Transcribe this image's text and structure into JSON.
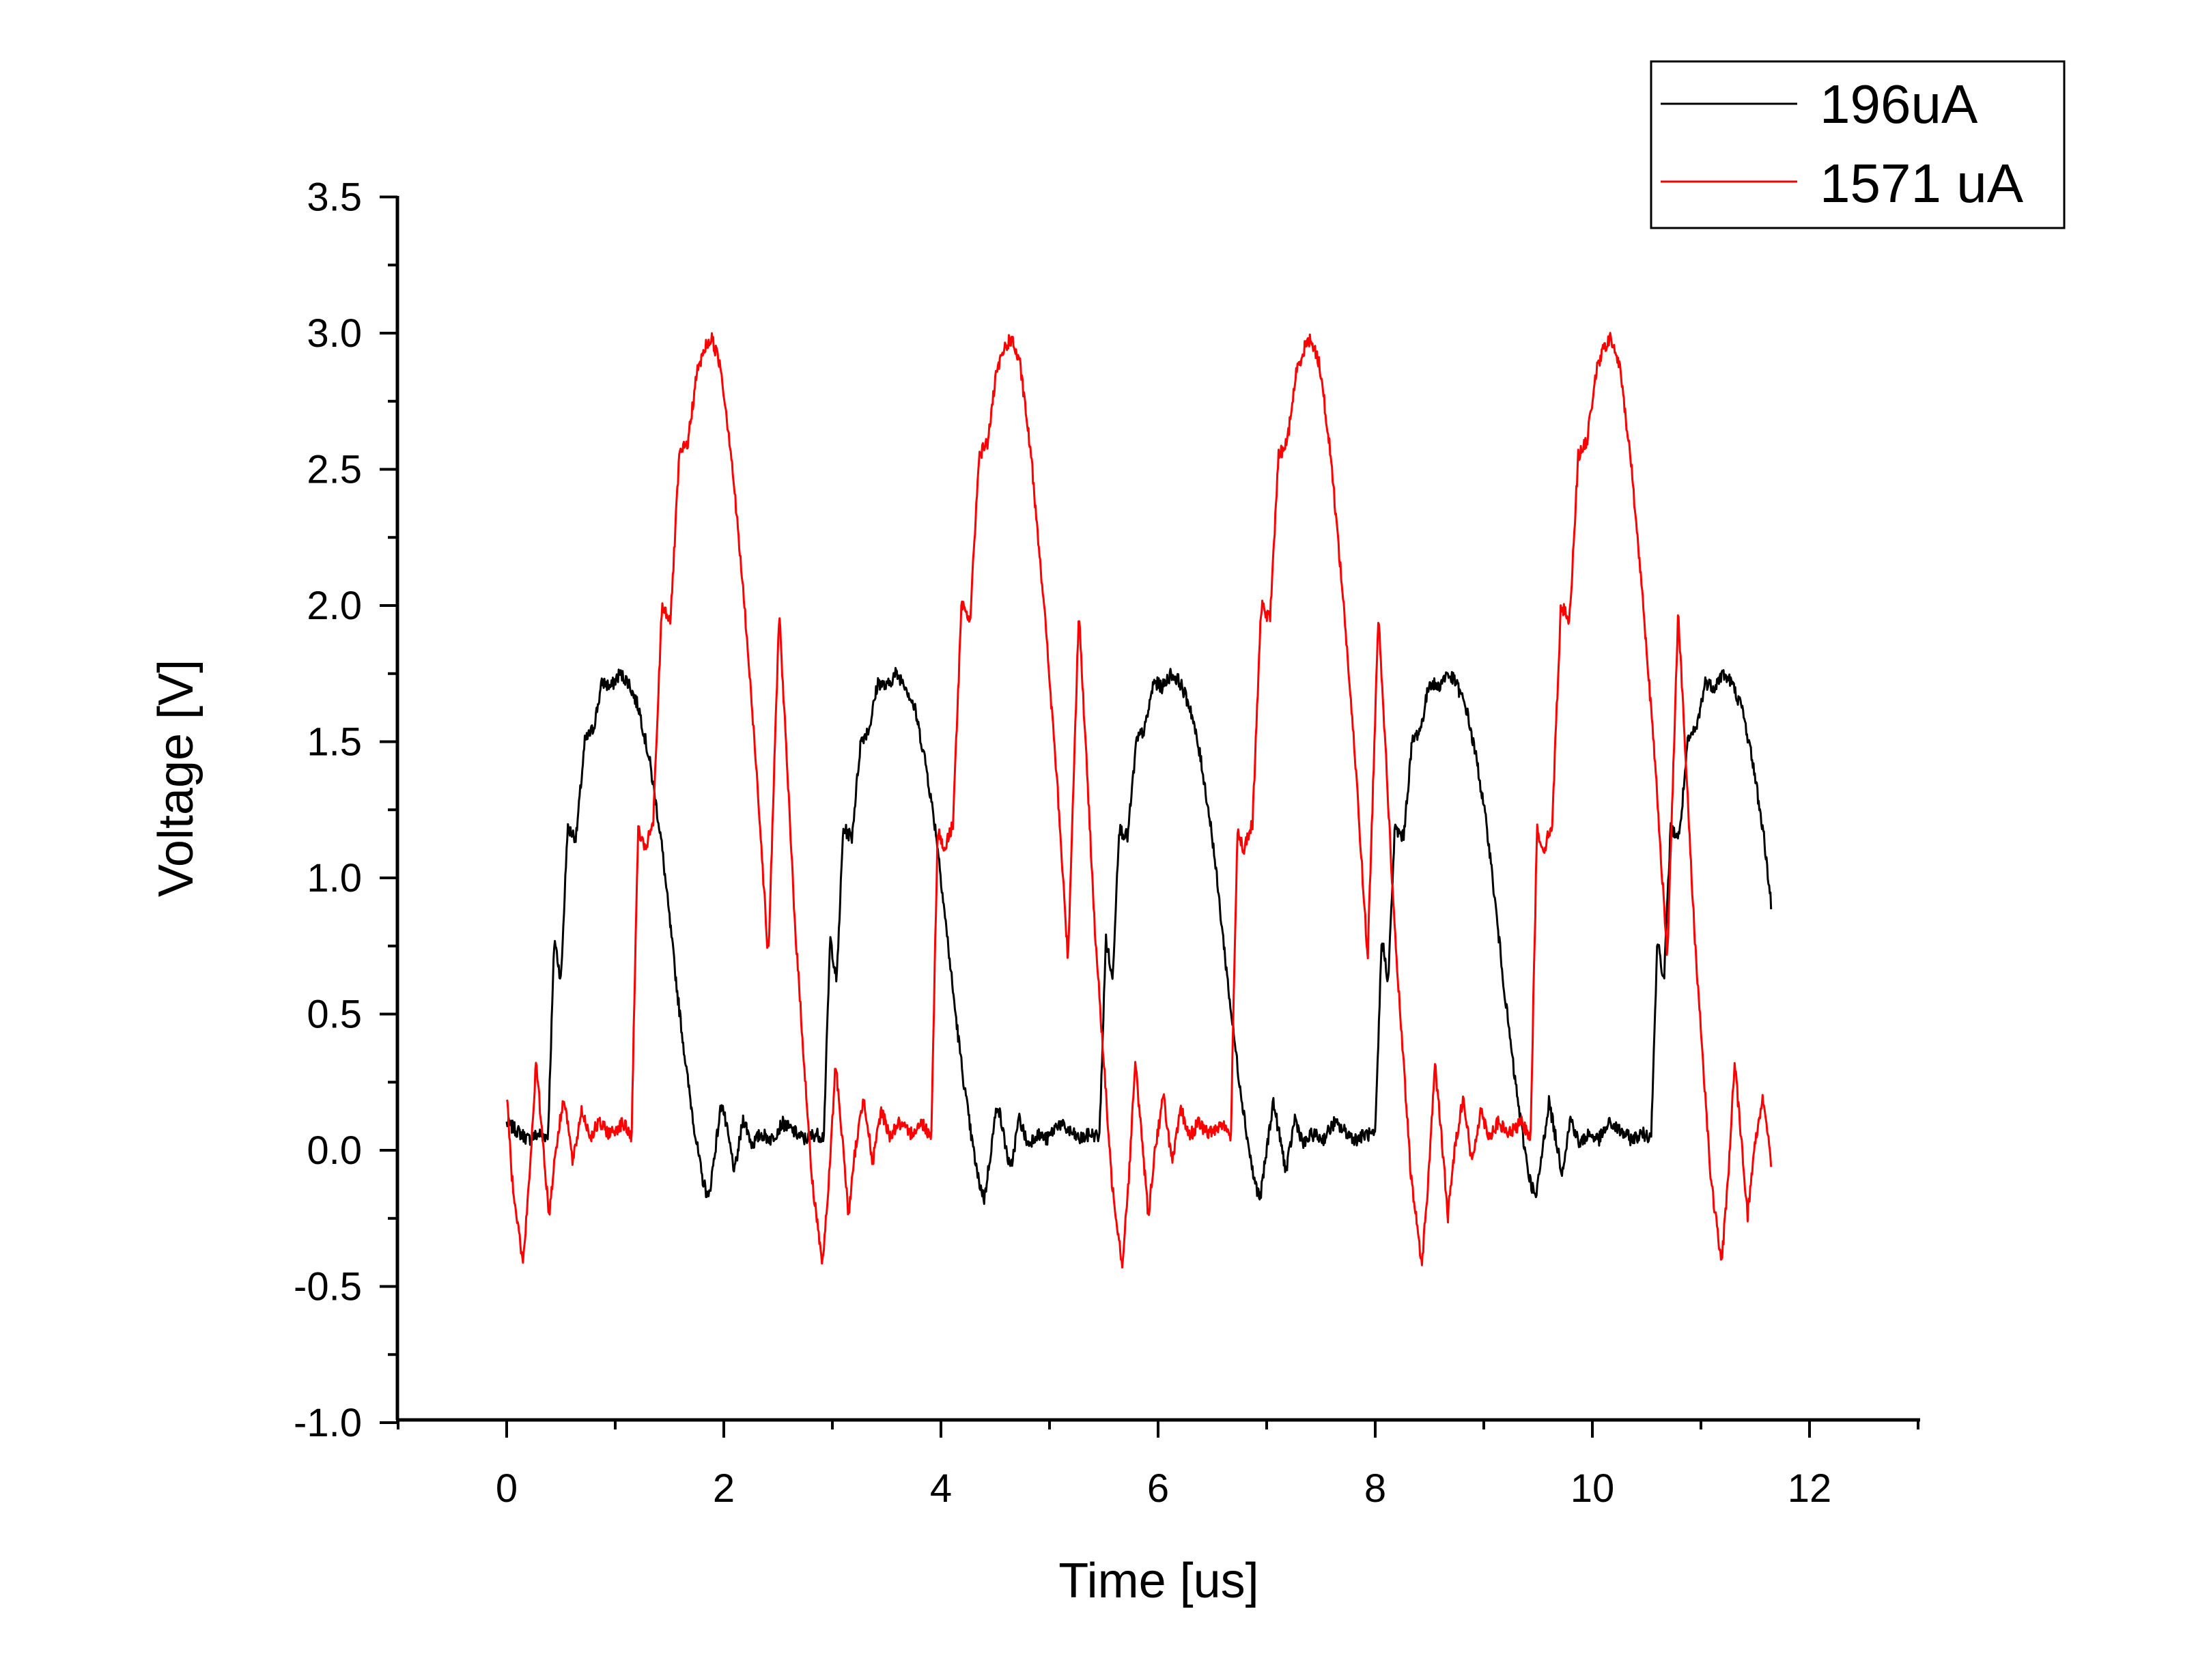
{
  "chart_data": {
    "type": "line",
    "xlabel": "Time [us]",
    "ylabel": "Voltage [V]",
    "xlim": [
      -1,
      13
    ],
    "ylim": [
      -1.0,
      3.5
    ],
    "x_ticks": [
      0,
      2,
      4,
      6,
      8,
      10,
      12
    ],
    "x_tick_labels": [
      "0",
      "2",
      "4",
      "6",
      "8",
      "10",
      "12"
    ],
    "y_ticks": [
      -1.0,
      -0.5,
      0.0,
      0.5,
      1.0,
      1.5,
      2.0,
      2.5,
      3.0,
      3.5
    ],
    "y_tick_labels": [
      "-1.0",
      "-0.5",
      "0.0",
      "0.5",
      "1.0",
      "1.5",
      "2.0",
      "2.5",
      "3.0",
      "3.5"
    ],
    "grid": false,
    "legend_position": "top-right",
    "series": [
      {
        "name": "196uA",
        "color": "#000000",
        "period": 2.54,
        "shape": [
          [
            0.0,
            0.1
          ],
          [
            0.1,
            0.07
          ],
          [
            0.2,
            0.04
          ],
          [
            0.3,
            0.06
          ],
          [
            0.38,
            0.05
          ],
          [
            0.44,
            0.78
          ],
          [
            0.5,
            0.62
          ],
          [
            0.56,
            1.18
          ],
          [
            0.64,
            1.15
          ],
          [
            0.72,
            1.5
          ],
          [
            0.8,
            1.55
          ],
          [
            0.88,
            1.72
          ],
          [
            0.96,
            1.7
          ],
          [
            1.04,
            1.75
          ],
          [
            1.12,
            1.72
          ],
          [
            1.22,
            1.62
          ],
          [
            1.32,
            1.42
          ],
          [
            1.42,
            1.15
          ],
          [
            1.5,
            0.85
          ],
          [
            1.58,
            0.55
          ],
          [
            1.66,
            0.28
          ],
          [
            1.74,
            0.05
          ],
          [
            1.8,
            -0.1
          ],
          [
            1.86,
            -0.18
          ],
          [
            1.92,
            0.0
          ],
          [
            1.98,
            0.18
          ],
          [
            2.04,
            0.05
          ],
          [
            2.1,
            -0.08
          ],
          [
            2.18,
            0.12
          ],
          [
            2.26,
            0.02
          ],
          [
            2.34,
            0.06
          ],
          [
            2.44,
            0.04
          ],
          [
            2.54,
            0.1
          ]
        ],
        "x_start": 0.0,
        "x_end": 11.65
      },
      {
        "name": "1571 uA",
        "color": "#ff0000",
        "period": 2.76,
        "shape": [
          [
            0.0,
            1.98
          ],
          [
            0.15,
            0.8
          ],
          [
            0.3,
            -0.1
          ],
          [
            0.4,
            -0.42
          ],
          [
            0.46,
            -0.1
          ],
          [
            0.52,
            0.32
          ],
          [
            0.58,
            0.05
          ],
          [
            0.64,
            -0.24
          ],
          [
            0.7,
            0.0
          ],
          [
            0.78,
            0.2
          ],
          [
            0.86,
            -0.05
          ],
          [
            0.94,
            0.15
          ],
          [
            1.02,
            0.05
          ],
          [
            1.1,
            0.1
          ],
          [
            1.2,
            0.06
          ],
          [
            1.32,
            0.1
          ],
          [
            1.4,
            0.05
          ],
          [
            1.46,
            1.18
          ],
          [
            1.52,
            1.1
          ],
          [
            1.6,
            1.2
          ],
          [
            1.68,
            2.0
          ],
          [
            1.76,
            1.95
          ],
          [
            1.84,
            2.55
          ],
          [
            1.92,
            2.6
          ],
          [
            2.0,
            2.85
          ],
          [
            2.08,
            2.95
          ],
          [
            2.14,
            2.98
          ],
          [
            2.22,
            2.88
          ],
          [
            2.32,
            2.55
          ],
          [
            2.44,
            2.0
          ],
          [
            2.56,
            1.35
          ],
          [
            2.66,
            0.7
          ],
          [
            2.76,
            1.98
          ]
        ],
        "x_start": -0.25,
        "x_end": 11.65
      }
    ]
  }
}
